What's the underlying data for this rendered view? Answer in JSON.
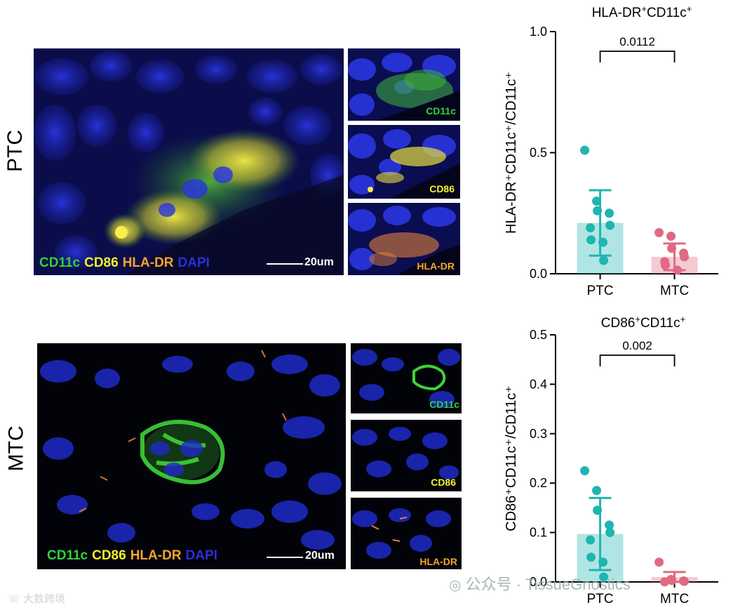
{
  "rows": [
    {
      "label": "PTC",
      "legend": [
        {
          "text": "CD11c",
          "color": "#2fd23a"
        },
        {
          "text": "CD86",
          "color": "#f5ef2e"
        },
        {
          "text": "HLA-DR",
          "color": "#f5a52a"
        },
        {
          "text": "DAPI",
          "color": "#2b2fd8"
        }
      ],
      "scale_label": "20um",
      "insets": [
        {
          "label": "CD11c",
          "color": "#2fd23a"
        },
        {
          "label": "CD86",
          "color": "#f5ef2e"
        },
        {
          "label": "HLA-DR",
          "color": "#f5a52a"
        }
      ]
    },
    {
      "label": "MTC",
      "legend": [
        {
          "text": "CD11c",
          "color": "#2fd23a"
        },
        {
          "text": "CD86",
          "color": "#f5ef2e"
        },
        {
          "text": "HLA-DR",
          "color": "#f5a52a"
        },
        {
          "text": "DAPI",
          "color": "#2b2fd8"
        }
      ],
      "scale_label": "20um",
      "insets": [
        {
          "label": "CD11c",
          "color": "#2fd23a"
        },
        {
          "label": "CD86",
          "color": "#f5ef2e"
        },
        {
          "label": "HLA-DR",
          "color": "#f5a52a"
        }
      ]
    }
  ],
  "chart_data": [
    {
      "type": "bar",
      "title_base": "HLA-DR",
      "title_sup1": "+",
      "title_mid": "CD11c",
      "title_sup2": "+",
      "ylabel": "HLA-DR⁺CD11c⁺/CD11c⁺",
      "categories": [
        "PTC",
        "MTC"
      ],
      "values": [
        0.21,
        0.07
      ],
      "sd": [
        0.135,
        0.055
      ],
      "points": [
        [
          0.51,
          0.3,
          0.26,
          0.25,
          0.2,
          0.19,
          0.14,
          0.13,
          0.055
        ],
        [
          0.17,
          0.155,
          0.105,
          0.085,
          0.07,
          0.05,
          0.035,
          0.015
        ]
      ],
      "colors": [
        "#1fb5b0",
        "#e06a82"
      ],
      "ylim": [
        0,
        1.0
      ],
      "yticks": [
        "0.0",
        "0.5",
        "1.0"
      ],
      "ytick_values": [
        0,
        0.5,
        1.0
      ],
      "pvalue": "0.0112"
    },
    {
      "type": "bar",
      "title_base": "CD86",
      "title_sup1": "+",
      "title_mid": "CD11c",
      "title_sup2": "+",
      "ylabel": "CD86⁺CD11c⁺/CD11c⁺",
      "categories": [
        "PTC",
        "MTC"
      ],
      "values": [
        0.097,
        0.01
      ],
      "sd": [
        0.073,
        0.01
      ],
      "points": [
        [
          0.225,
          0.185,
          0.145,
          0.115,
          0.1,
          0.085,
          0.05,
          0.04,
          0.01
        ],
        [
          0.04,
          0.005,
          0.003,
          0.002,
          0.001,
          0.0
        ]
      ],
      "colors": [
        "#1fb5b0",
        "#e06a82"
      ],
      "ylim": [
        0,
        0.5
      ],
      "yticks": [
        "0.0",
        "0.1",
        "0.2",
        "0.3",
        "0.4",
        "0.5"
      ],
      "ytick_values": [
        0,
        0.1,
        0.2,
        0.3,
        0.4,
        0.5
      ],
      "pvalue": "0.002"
    }
  ],
  "watermarks": {
    "wechat": "公众号 · TissueGnostics",
    "corner": "大数跨境"
  }
}
